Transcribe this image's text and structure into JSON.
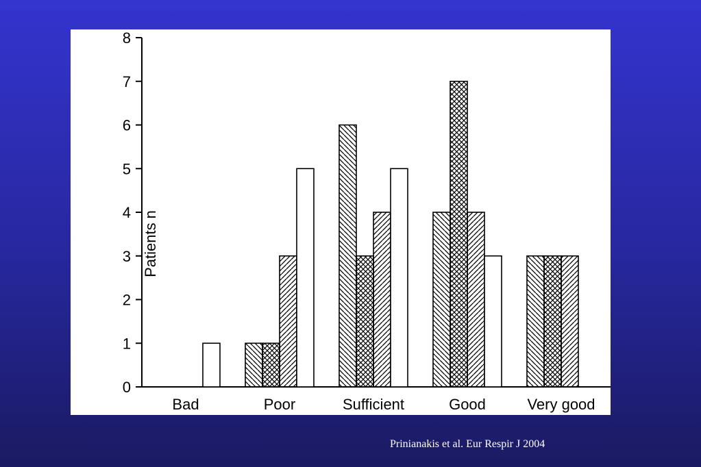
{
  "chart_data": {
    "type": "bar",
    "title": "",
    "xlabel": "",
    "ylabel": "Patients n",
    "ylim": [
      0,
      8
    ],
    "yticks": [
      "0",
      "1",
      "2",
      "3",
      "4",
      "5",
      "6",
      "7",
      "8"
    ],
    "categories": [
      "Bad",
      "Poor",
      "Sufficient",
      "Good",
      "Very good"
    ],
    "grid": false,
    "legend": "none",
    "series": [
      {
        "pattern": "backslash-hatch",
        "values": [
          0,
          1,
          6,
          4,
          3
        ]
      },
      {
        "pattern": "crosshatch",
        "values": [
          0,
          1,
          3,
          7,
          3
        ]
      },
      {
        "pattern": "slash-hatch",
        "values": [
          0,
          3,
          4,
          4,
          3
        ]
      },
      {
        "pattern": "open",
        "values": [
          1,
          5,
          5,
          3,
          null
        ]
      }
    ]
  },
  "citation": "Prinianakis et al. Eur Respir J 2004",
  "colors": {
    "background_top": "#3434cf",
    "background_bottom": "#1a1a62",
    "panel": "#ffffff",
    "ink": "#000000",
    "citation_text": "#ffffff"
  }
}
